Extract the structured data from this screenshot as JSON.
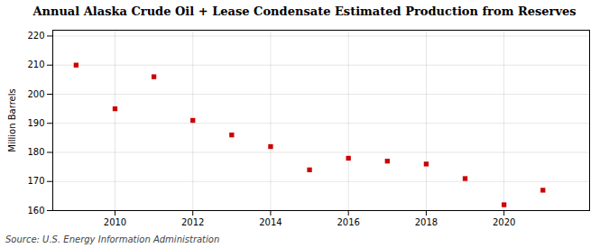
{
  "chart_data": {
    "type": "scatter",
    "title": "Annual Alaska Crude Oil + Lease Condensate Estimated Production from Reserves",
    "ylabel": "Million Barrels",
    "source": "Source: U.S. Energy Information Administration",
    "x": [
      2009,
      2010,
      2011,
      2012,
      2013,
      2014,
      2015,
      2016,
      2017,
      2018,
      2019,
      2020,
      2021
    ],
    "values": [
      210.0,
      195.0,
      206.0,
      191.0,
      186.0,
      182.0,
      174.0,
      178.0,
      177.0,
      176.0,
      171.0,
      162.0,
      167.0
    ],
    "color": "#cc0000",
    "marker": "square",
    "xlim": [
      2008.4,
      2022.2
    ],
    "xticks": [
      2010,
      2012,
      2014,
      2016,
      2018,
      2020
    ],
    "ylim": [
      160,
      222
    ],
    "yticks": [
      160,
      170,
      180,
      190,
      200,
      210,
      220
    ],
    "grid": true
  }
}
